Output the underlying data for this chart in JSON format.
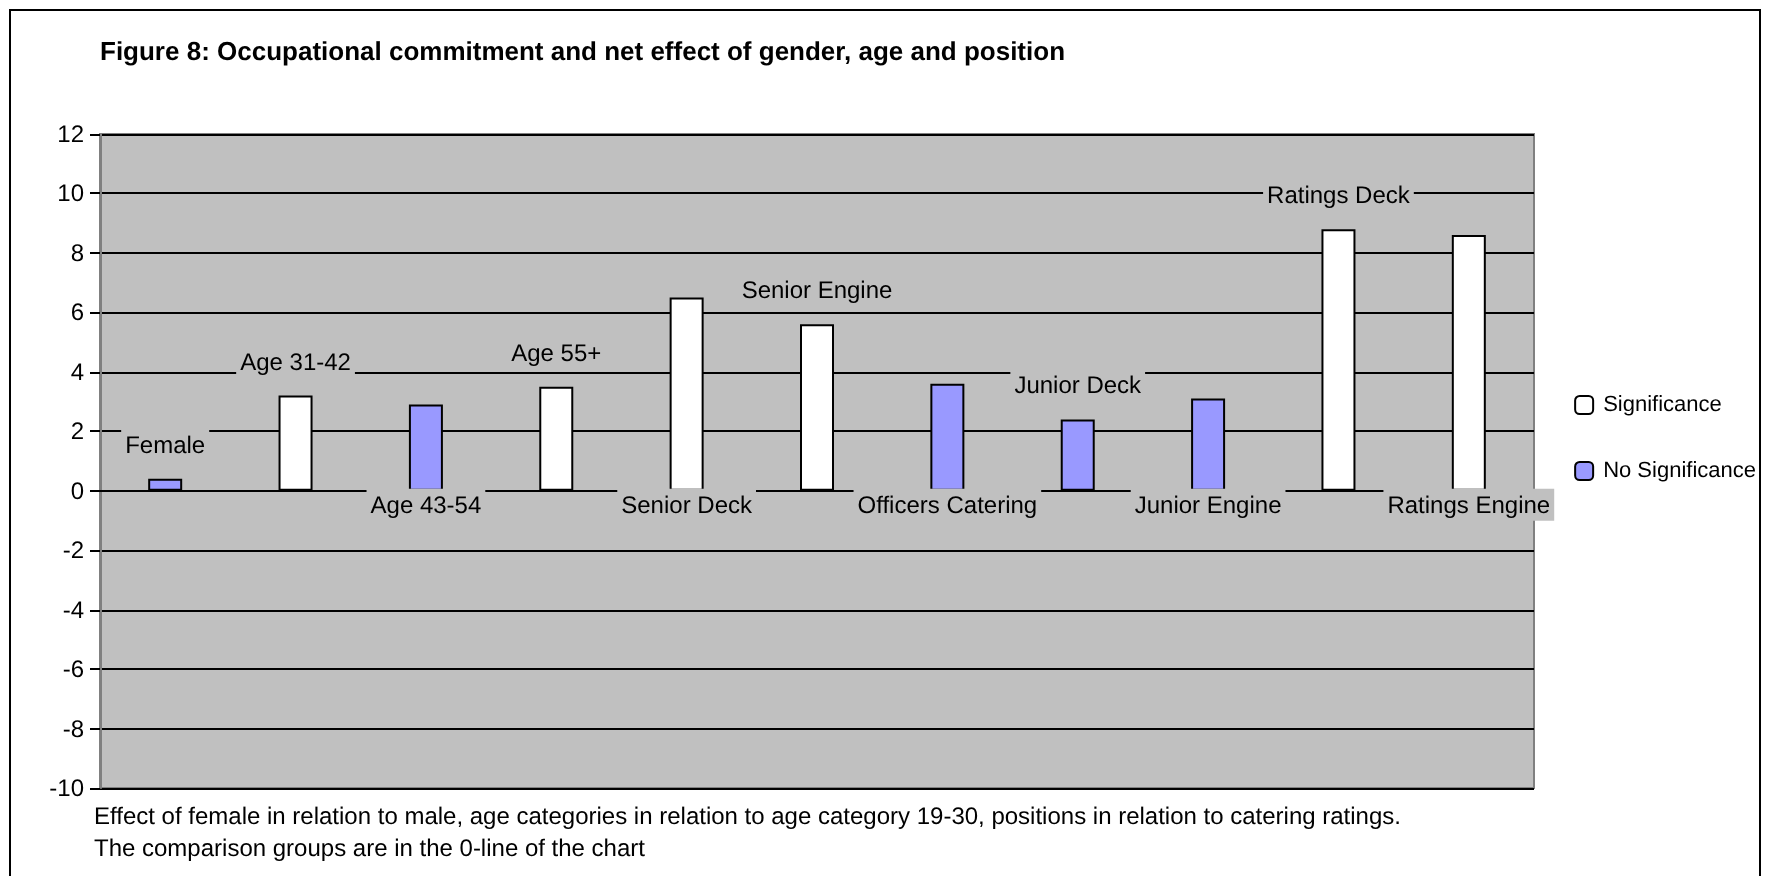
{
  "chart_data": {
    "type": "bar",
    "title": "Figure 8: Occupational commitment and net effect of gender, age and position",
    "categories": [
      "Female",
      "Age 31-42",
      "Age 43-54",
      "Age 55+",
      "Senior Deck",
      "Senior Engine",
      "Officers Catering",
      "Junior Deck",
      "Junior Engine",
      "Ratings Deck",
      "Ratings Engine"
    ],
    "series": [
      {
        "name": "Significance",
        "color": "#ffffff",
        "values": [
          null,
          3.2,
          null,
          3.5,
          6.5,
          5.6,
          null,
          null,
          null,
          8.8,
          8.6
        ]
      },
      {
        "name": "No Significance",
        "color": "#9999ff",
        "values": [
          0.4,
          null,
          2.9,
          null,
          null,
          null,
          3.6,
          2.4,
          3.1,
          null,
          null
        ]
      }
    ],
    "ylim": [
      -10,
      12
    ],
    "yticks": [
      -10,
      -8,
      -6,
      -4,
      -2,
      0,
      2,
      4,
      6,
      8,
      10,
      12
    ],
    "grid": "y",
    "legend": "right",
    "tick_labels": "y",
    "annotations": [
      "Effect of female in relation to male, age categories in relation to age category 19-30, positions in relation to catering ratings.",
      "The comparison groups are in the 0-line of the chart"
    ]
  }
}
